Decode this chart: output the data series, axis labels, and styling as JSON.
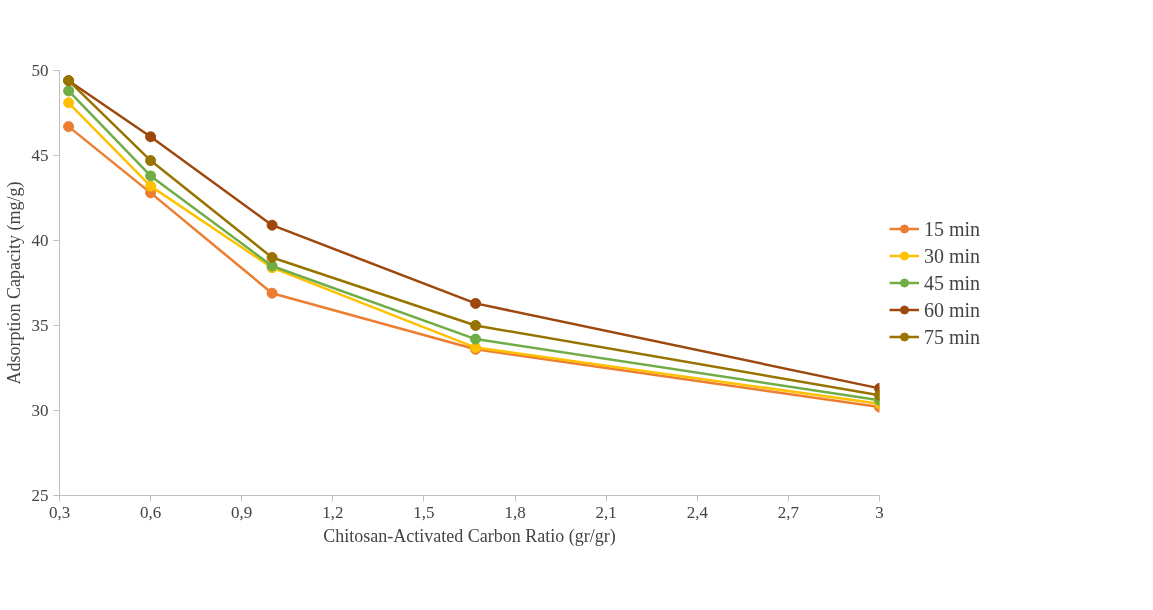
{
  "chart_data": {
    "type": "line",
    "xlabel": "Chitosan-Activated Carbon Ratio (gr/gr)",
    "ylabel": "Adsorption Capacity (mg/g)",
    "x": [
      0.33,
      0.6,
      1,
      1.67,
      3
    ],
    "series": [
      {
        "name": "15 min",
        "color": "#ed7d31",
        "values": [
          46.7,
          42.8,
          36.9,
          33.6,
          30.2
        ]
      },
      {
        "name": "30 min",
        "color": "#ffc000",
        "values": [
          48.1,
          43.2,
          38.4,
          33.7,
          30.4
        ]
      },
      {
        "name": "45 min",
        "color": "#70ad47",
        "values": [
          48.8,
          43.8,
          38.5,
          34.2,
          30.6
        ]
      },
      {
        "name": "60 min",
        "color": "#9e480e",
        "values": [
          49.4,
          46.1,
          40.9,
          36.3,
          31.3
        ]
      },
      {
        "name": "75 min",
        "color": "#997300",
        "values": [
          49.4,
          44.7,
          39.0,
          35.0,
          30.9
        ]
      }
    ],
    "xlim": [
      0.3,
      3
    ],
    "ylim": [
      25,
      50
    ],
    "xticks": [
      {
        "value": 0.3,
        "label": "0,3"
      },
      {
        "value": 0.6,
        "label": "0,6"
      },
      {
        "value": 0.9,
        "label": "0,9"
      },
      {
        "value": 1.2,
        "label": "1,2"
      },
      {
        "value": 1.5,
        "label": "1,5"
      },
      {
        "value": 1.8,
        "label": "1,8"
      },
      {
        "value": 2.1,
        "label": "2,1"
      },
      {
        "value": 2.4,
        "label": "2,4"
      },
      {
        "value": 2.7,
        "label": "2,7"
      },
      {
        "value": 3,
        "label": "3"
      }
    ],
    "yticks": [
      25,
      30,
      35,
      40,
      45,
      50
    ],
    "grid": false,
    "legend": "right",
    "marker": "circle",
    "line_style": "solid"
  }
}
